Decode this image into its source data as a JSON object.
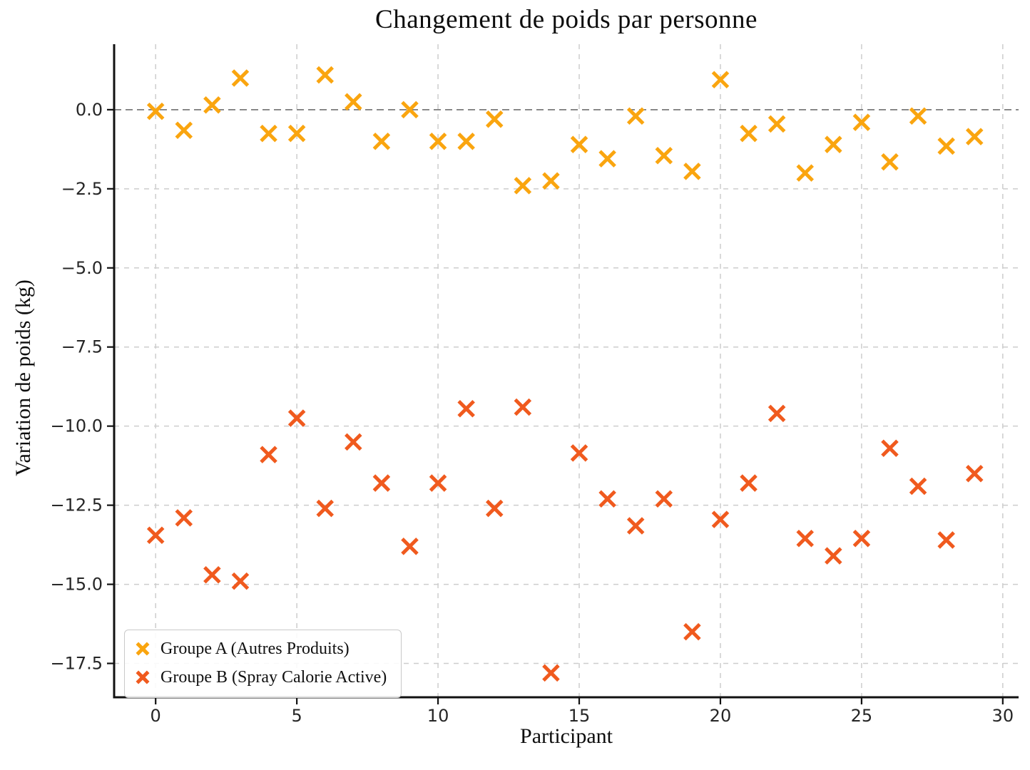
{
  "chart_data": {
    "type": "scatter",
    "title": "Changement de poids par personne",
    "xlabel": "Participant",
    "ylabel": "Variation de poids (kg)",
    "grid": "dashed",
    "grid_color": "#cdcdcd",
    "zero_line": {
      "value": 0,
      "style": "dashed",
      "color": "#7a7a7a"
    },
    "legend_position": "lower-left",
    "xlim": [
      -1.47,
      30.56
    ],
    "ylim": [
      -18.57,
      2.07
    ],
    "x_ticks": [
      0,
      5,
      10,
      15,
      20,
      25,
      30
    ],
    "y_ticks": [
      {
        "value": 0,
        "label": "0.0"
      },
      {
        "value": -2.5,
        "label": "−2.5"
      },
      {
        "value": -5,
        "label": "−5.0"
      },
      {
        "value": -7.5,
        "label": "−7.5"
      },
      {
        "value": -10,
        "label": "−10.0"
      },
      {
        "value": -12.5,
        "label": "−12.5"
      },
      {
        "value": -15,
        "label": "−15.0"
      },
      {
        "value": -17.5,
        "label": "−17.5"
      }
    ],
    "x": [
      0,
      1,
      2,
      3,
      4,
      5,
      6,
      7,
      8,
      9,
      10,
      11,
      12,
      13,
      14,
      15,
      16,
      17,
      18,
      19,
      20,
      21,
      22,
      23,
      24,
      25,
      26,
      27,
      28,
      29
    ],
    "series": [
      {
        "name": "Groupe A (Autres Produits)",
        "marker": "x",
        "color": "#FAA50F",
        "values": [
          -0.05,
          -0.65,
          0.15,
          1.0,
          -0.75,
          -0.75,
          1.1,
          0.25,
          -1.0,
          0.0,
          -1.0,
          -1.0,
          -0.3,
          -2.4,
          -2.25,
          -1.1,
          -1.55,
          -0.2,
          -1.45,
          -1.95,
          0.95,
          -0.75,
          -0.45,
          -2.0,
          -1.1,
          -0.4,
          -1.65,
          -0.2,
          -1.15,
          -0.85
        ]
      },
      {
        "name": "Groupe B (Spray Calorie Active)",
        "marker": "x",
        "color": "#F05A1E",
        "values": [
          -13.45,
          -12.9,
          -14.7,
          -14.9,
          -10.9,
          -9.75,
          -12.6,
          -10.5,
          -11.8,
          -13.8,
          -11.8,
          -9.45,
          -12.6,
          -9.4,
          -17.8,
          -10.85,
          -12.3,
          -13.15,
          -12.3,
          -16.5,
          -12.95,
          -11.8,
          -9.6,
          -13.55,
          -14.1,
          -13.55,
          -10.7,
          -11.9,
          -13.6,
          -11.5
        ]
      }
    ]
  }
}
